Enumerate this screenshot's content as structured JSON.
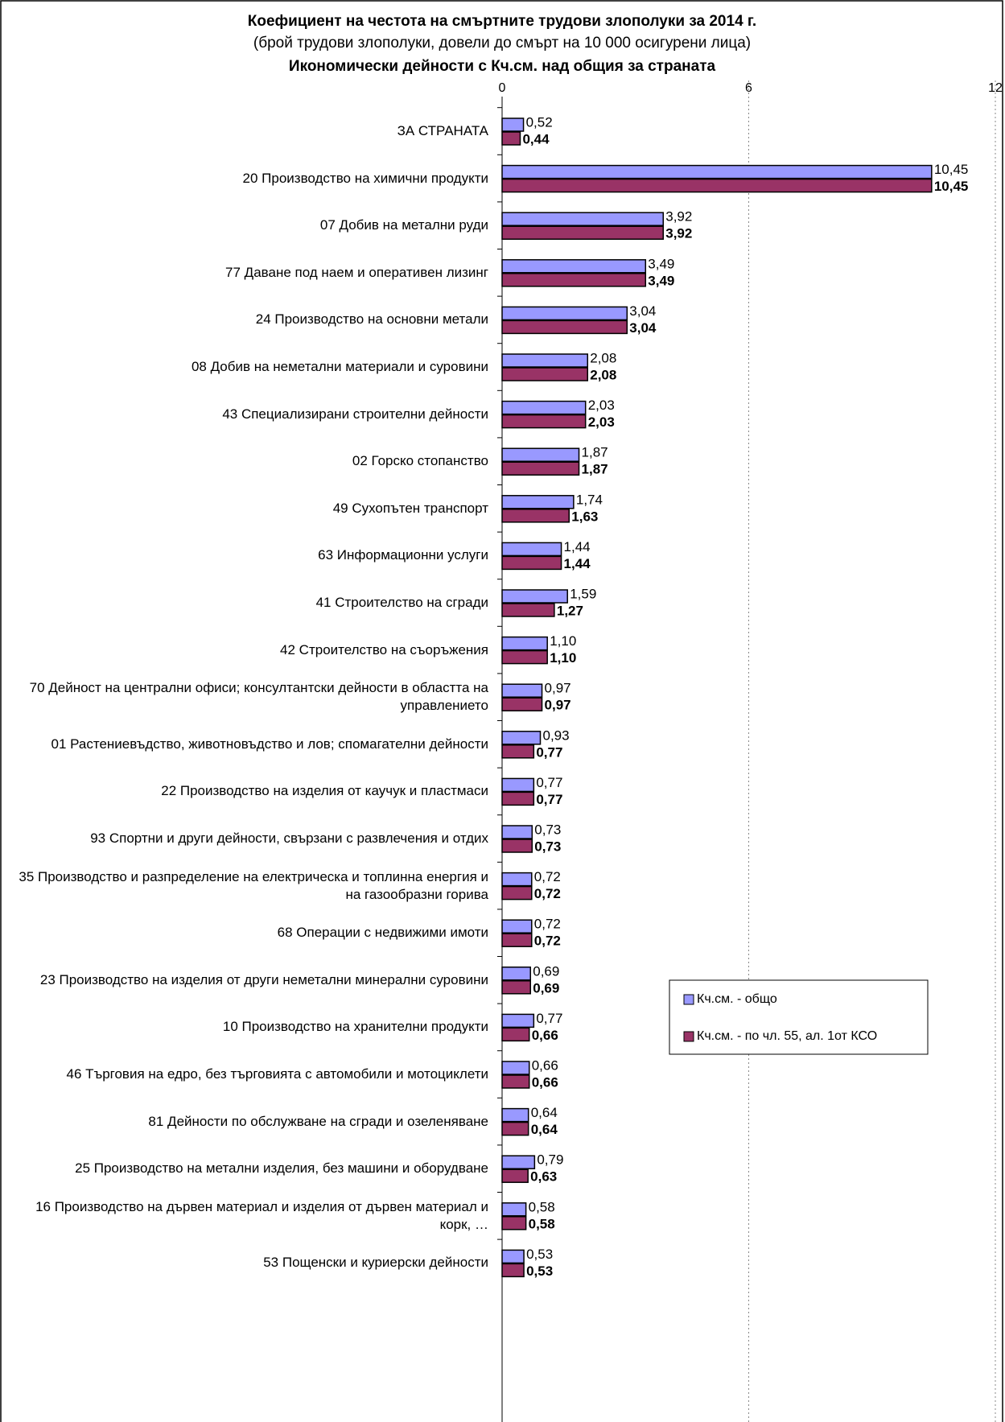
{
  "chart_data": {
    "type": "barh",
    "title": "Коефициент на честота на смъртните трудови злополуки за 2014 г.",
    "subtitle": "(брой трудови злополуки, довели до смърт на 10 000 осигурени лица)",
    "subtitle_2": "Икономически дейности с Кч.см. над общия за страната",
    "categories": [
      "ЗА СТРАНАТА",
      "20 Производство на химични продукти",
      "07 Добив на метални руди",
      "77 Даване под наем и оперативен лизинг",
      "24 Производство на основни метали",
      "08 Добив на неметални материали и суровини",
      "43 Специализирани строителни дейности",
      "02 Горско стопанство",
      "49 Сухопътен транспорт",
      "63 Информационни услуги",
      "41 Строителство на сгради",
      "42 Строителство на съоръжения",
      "70 Дейност на централни офиси; консултантски дейности в областта на управлението",
      "01 Растениевъдство, животновъдство и лов; спомагателни дейности",
      "22 Производство на изделия от каучук и пластмаси",
      "93 Спортни и други дейности, свързани с развлечения и отдих",
      "35 Производство и разпределение на електрическа и топлинна енергия и на газообразни горива",
      "68 Операции с недвижими имоти",
      "23 Производство на изделия от други неметални минерални суровини",
      "10 Производство на хранителни продукти",
      "46 Търговия на едро, без търговията с автомобили и мотоциклети",
      "81 Дейности по обслужване на сгради и озеленяване",
      "25 Производство на метални изделия, без машини и оборудване",
      "16 Производство на дървен материал и изделия от дървен материал и корк, …",
      "53 Пощенски и куриерски дейности"
    ],
    "series": [
      {
        "name": "Кч.см. - общо",
        "color": "#9999ff",
        "values": [
          0.52,
          10.45,
          3.92,
          3.49,
          3.04,
          2.08,
          2.03,
          1.87,
          1.74,
          1.44,
          1.59,
          1.1,
          0.97,
          0.93,
          0.77,
          0.73,
          0.72,
          0.72,
          0.69,
          0.77,
          0.66,
          0.64,
          0.79,
          0.58,
          0.53
        ],
        "value_labels": [
          "0,52",
          "10,45",
          "3,92",
          "3,49",
          "3,04",
          "2,08",
          "2,03",
          "1,87",
          "1,74",
          "1,44",
          "1,59",
          "1,10",
          "0,97",
          "0,93",
          "0,77",
          "0,73",
          "0,72",
          "0,72",
          "0,69",
          "0,77",
          "0,66",
          "0,64",
          "0,79",
          "0,58",
          "0,53"
        ]
      },
      {
        "name": "Кч.см. - по чл. 55, ал. 1от КСО",
        "color": "#993366",
        "values": [
          0.44,
          10.45,
          3.92,
          3.49,
          3.04,
          2.08,
          2.03,
          1.87,
          1.63,
          1.44,
          1.27,
          1.1,
          0.97,
          0.77,
          0.77,
          0.73,
          0.72,
          0.72,
          0.69,
          0.66,
          0.66,
          0.64,
          0.63,
          0.58,
          0.53
        ],
        "value_labels": [
          "0,44",
          "10,45",
          "3,92",
          "3,49",
          "3,04",
          "2,08",
          "2,03",
          "1,87",
          "1,63",
          "1,44",
          "1,27",
          "1,10",
          "0,97",
          "0,77",
          "0,77",
          "0,73",
          "0,72",
          "0,72",
          "0,69",
          "0,66",
          "0,66",
          "0,64",
          "0,63",
          "0,58",
          "0,53"
        ]
      }
    ],
    "xlim": [
      0,
      12
    ],
    "xticks": [
      0,
      6,
      12
    ],
    "grid": true
  }
}
